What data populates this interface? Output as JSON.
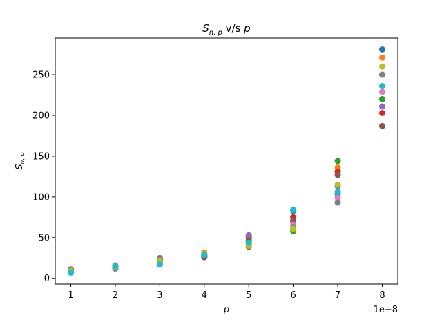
{
  "chart_data": {
    "type": "scatter",
    "title": {
      "symbol": "S",
      "subscript": "n, p",
      "middle": " v/s ",
      "var": "p"
    },
    "xlabel": "p",
    "ylabel": {
      "symbol": "S",
      "subscript": "n, p"
    },
    "x_tick_labels": [
      "1",
      "2",
      "3",
      "4",
      "5",
      "6",
      "7",
      "8"
    ],
    "x_offset_label": "1e−8",
    "y_tick_labels": [
      "0",
      "50",
      "100",
      "150",
      "200",
      "250"
    ],
    "xlim": [
      0.65,
      8.35
    ],
    "ylim": [
      -7,
      295
    ],
    "x_ticks": [
      1,
      2,
      3,
      4,
      5,
      6,
      7,
      8
    ],
    "y_ticks": [
      0,
      50,
      100,
      150,
      200,
      250
    ],
    "grid": false,
    "colors": [
      "#1f77b4",
      "#ff7f0e",
      "#2ca02c",
      "#d62728",
      "#9467bd",
      "#8c564b",
      "#e377c2",
      "#7f7f7f",
      "#bcbd22",
      "#17becf"
    ],
    "series": [
      {
        "color": "#1f77b4",
        "points": [
          [
            1,
            9
          ],
          [
            2,
            15
          ],
          [
            3,
            22
          ],
          [
            4,
            29
          ],
          [
            5,
            45
          ],
          [
            6,
            83
          ],
          [
            7,
            104
          ],
          [
            8,
            281
          ]
        ]
      },
      {
        "color": "#ff7f0e",
        "points": [
          [
            1,
            10
          ],
          [
            2,
            16
          ],
          [
            3,
            20
          ],
          [
            4,
            32
          ],
          [
            5,
            48
          ],
          [
            6,
            75
          ],
          [
            7,
            136
          ],
          [
            8,
            271
          ]
        ]
      },
      {
        "color": "#2ca02c",
        "points": [
          [
            1,
            10
          ],
          [
            2,
            14
          ],
          [
            3,
            24
          ],
          [
            4,
            26
          ],
          [
            5,
            47
          ],
          [
            6,
            58
          ],
          [
            7,
            144
          ],
          [
            8,
            220
          ]
        ]
      },
      {
        "color": "#d62728",
        "points": [
          [
            1,
            8
          ],
          [
            2,
            13
          ],
          [
            3,
            19
          ],
          [
            4,
            28
          ],
          [
            5,
            51
          ],
          [
            6,
            75
          ],
          [
            7,
            131
          ],
          [
            8,
            203
          ]
        ]
      },
      {
        "color": "#9467bd",
        "points": [
          [
            1,
            9
          ],
          [
            2,
            12
          ],
          [
            3,
            21
          ],
          [
            4,
            27
          ],
          [
            5,
            53
          ],
          [
            6,
            70
          ],
          [
            7,
            113
          ],
          [
            8,
            211
          ]
        ]
      },
      {
        "color": "#8c564b",
        "points": [
          [
            1,
            11
          ],
          [
            2,
            15
          ],
          [
            3,
            23
          ],
          [
            4,
            26
          ],
          [
            5,
            39
          ],
          [
            6,
            71
          ],
          [
            7,
            127
          ],
          [
            8,
            187
          ]
        ]
      },
      {
        "color": "#e377c2",
        "points": [
          [
            1,
            8
          ],
          [
            2,
            15
          ],
          [
            3,
            20
          ],
          [
            4,
            30
          ],
          [
            5,
            41
          ],
          [
            6,
            66
          ],
          [
            7,
            99
          ],
          [
            8,
            229
          ]
        ]
      },
      {
        "color": "#7f7f7f",
        "points": [
          [
            1,
            11
          ],
          [
            2,
            13
          ],
          [
            3,
            25
          ],
          [
            4,
            28
          ],
          [
            5,
            43
          ],
          [
            6,
            63
          ],
          [
            7,
            93
          ],
          [
            8,
            250
          ]
        ]
      },
      {
        "color": "#bcbd22",
        "points": [
          [
            1,
            9
          ],
          [
            2,
            14
          ],
          [
            3,
            21
          ],
          [
            4,
            30
          ],
          [
            5,
            40
          ],
          [
            6,
            61
          ],
          [
            7,
            115
          ],
          [
            8,
            260
          ]
        ]
      },
      {
        "color": "#17becf",
        "points": [
          [
            1,
            7
          ],
          [
            2,
            15
          ],
          [
            3,
            17
          ],
          [
            4,
            29
          ],
          [
            5,
            44
          ],
          [
            6,
            84
          ],
          [
            7,
            106
          ],
          [
            8,
            236
          ]
        ]
      }
    ]
  }
}
